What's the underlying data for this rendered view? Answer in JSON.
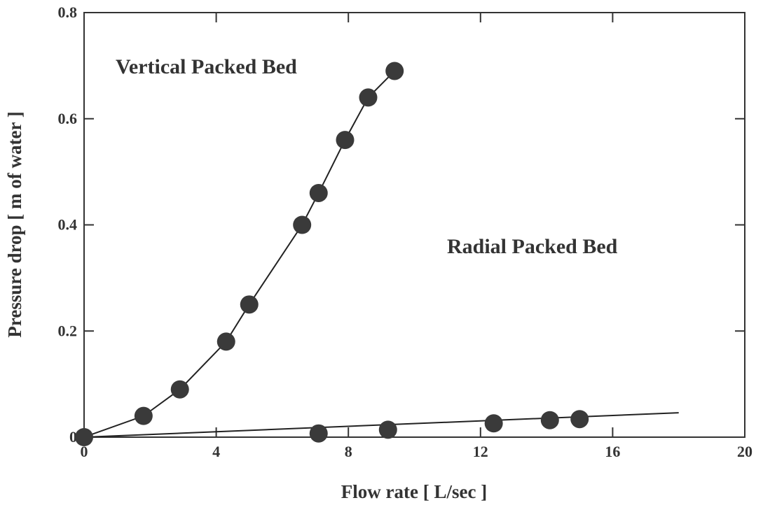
{
  "chart_data": {
    "type": "scatter",
    "x_label": "Flow rate [ L/sec ]",
    "y_label": "Pressure drop [ m of water ]",
    "annotations": [
      "Vertical Packed Bed",
      "Radial Packed Bed"
    ],
    "xlim": [
      0,
      20
    ],
    "xticks": [
      0,
      4,
      8,
      12,
      16,
      20
    ],
    "ylim": [
      0,
      0.8
    ],
    "yticks": [
      0,
      0.2,
      0.4,
      0.6,
      0.8
    ],
    "series": [
      {
        "mode": "markers",
        "color": "#3a3a3a",
        "x": [
          0,
          1.8,
          2.9,
          4.3,
          5.0,
          6.6,
          7.1,
          7.9,
          8.6,
          9.4
        ],
        "values": [
          0,
          0.04,
          0.09,
          0.18,
          0.25,
          0.4,
          0.46,
          0.56,
          0.64,
          0.69
        ]
      },
      {
        "mode": "markers",
        "color": "#3a3a3a",
        "x": [
          7.1,
          9.2,
          12.4,
          14.1,
          15.0
        ],
        "values": [
          0.007,
          0.014,
          0.026,
          0.032,
          0.034
        ]
      },
      {
        "mode": "line",
        "color": "#222",
        "x": [
          0,
          1.8,
          2.9,
          4.3,
          5.0,
          6.6,
          7.1,
          7.9,
          8.6,
          9.4
        ],
        "values": [
          0,
          0.04,
          0.09,
          0.18,
          0.25,
          0.4,
          0.46,
          0.56,
          0.64,
          0.69
        ]
      },
      {
        "mode": "line",
        "color": "#222",
        "x": [
          0,
          18
        ],
        "values": [
          0,
          0.046
        ]
      }
    ]
  }
}
